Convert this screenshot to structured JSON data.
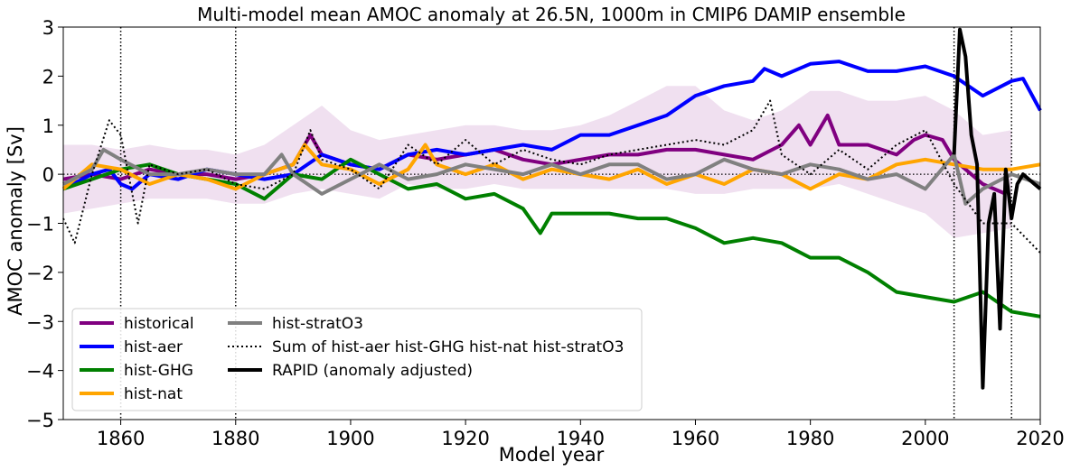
{
  "chart_data": {
    "type": "line",
    "title": "Multi-model mean AMOC anomaly at 26.5N, 1000m in CMIP6 DAMIP ensemble",
    "xlabel": "Model year",
    "ylabel": "AMOC anomaly [Sv]",
    "xlim": [
      1850,
      2020
    ],
    "ylim": [
      -5,
      3
    ],
    "xticks": [
      1860,
      1880,
      1900,
      1920,
      1940,
      1960,
      1980,
      2000,
      2020
    ],
    "yticks": [
      3,
      2,
      1,
      0,
      -1,
      -2,
      -3,
      -4,
      -5
    ],
    "ytick_labels": [
      "3",
      "2",
      "1",
      "0",
      "−1",
      "−2",
      "−3",
      "−4",
      "−5"
    ],
    "vertical_dotted_lines": [
      1860,
      1880,
      2005,
      2015
    ],
    "zero_line": true,
    "grid": false,
    "legend_position": "lower-left",
    "series": [
      {
        "name": "historical",
        "color": "#800080",
        "style": "solid",
        "x": [
          1850,
          1855,
          1860,
          1865,
          1870,
          1875,
          1880,
          1885,
          1890,
          1893,
          1895,
          1900,
          1905,
          1910,
          1915,
          1920,
          1925,
          1930,
          1935,
          1940,
          1945,
          1950,
          1955,
          1960,
          1965,
          1970,
          1975,
          1978,
          1980,
          1983,
          1985,
          1990,
          1995,
          1998,
          2000,
          2003,
          2005,
          2010,
          2014
        ],
        "y": [
          -0.1,
          0.0,
          -0.1,
          0.1,
          0.0,
          0.0,
          -0.1,
          0.0,
          0.2,
          0.8,
          0.4,
          0.2,
          0.1,
          0.4,
          0.3,
          0.4,
          0.5,
          0.3,
          0.2,
          0.3,
          0.4,
          0.4,
          0.5,
          0.5,
          0.4,
          0.3,
          0.6,
          1.0,
          0.6,
          1.2,
          0.6,
          0.6,
          0.4,
          0.7,
          0.8,
          0.7,
          0.3,
          -0.2,
          -0.4
        ]
      },
      {
        "name": "hist-aer",
        "color": "#0000ff",
        "style": "solid",
        "x": [
          1850,
          1855,
          1858,
          1860,
          1862,
          1865,
          1870,
          1875,
          1880,
          1885,
          1890,
          1895,
          1900,
          1905,
          1910,
          1915,
          1920,
          1925,
          1930,
          1935,
          1940,
          1945,
          1950,
          1955,
          1960,
          1965,
          1970,
          1972,
          1975,
          1980,
          1985,
          1990,
          1995,
          2000,
          2005,
          2010,
          2015,
          2017,
          2020
        ],
        "y": [
          -0.3,
          0.0,
          0.1,
          -0.2,
          -0.3,
          0.0,
          -0.1,
          0.1,
          0.0,
          -0.1,
          0.0,
          0.4,
          0.2,
          0.1,
          0.4,
          0.5,
          0.4,
          0.5,
          0.6,
          0.5,
          0.8,
          0.8,
          1.0,
          1.2,
          1.6,
          1.8,
          1.9,
          2.15,
          2.0,
          2.25,
          2.3,
          2.1,
          2.1,
          2.2,
          2.0,
          1.6,
          1.9,
          1.95,
          1.3
        ]
      },
      {
        "name": "hist-GHG",
        "color": "#008000",
        "style": "solid",
        "x": [
          1850,
          1855,
          1860,
          1865,
          1870,
          1875,
          1880,
          1885,
          1890,
          1895,
          1900,
          1905,
          1910,
          1915,
          1920,
          1925,
          1930,
          1933,
          1935,
          1940,
          1945,
          1950,
          1955,
          1960,
          1965,
          1970,
          1975,
          1980,
          1985,
          1990,
          1995,
          2000,
          2005,
          2010,
          2015,
          2020
        ],
        "y": [
          -0.3,
          -0.1,
          0.1,
          0.2,
          0.0,
          -0.1,
          -0.2,
          -0.5,
          0.0,
          -0.1,
          0.3,
          0.0,
          -0.3,
          -0.2,
          -0.5,
          -0.4,
          -0.7,
          -1.2,
          -0.8,
          -0.8,
          -0.8,
          -0.9,
          -0.9,
          -1.1,
          -1.4,
          -1.3,
          -1.4,
          -1.7,
          -1.7,
          -2.0,
          -2.4,
          -2.5,
          -2.6,
          -2.4,
          -2.8,
          -2.9
        ]
      },
      {
        "name": "hist-nat",
        "color": "#ffa500",
        "style": "solid",
        "x": [
          1850,
          1855,
          1860,
          1865,
          1870,
          1875,
          1880,
          1885,
          1890,
          1892,
          1895,
          1900,
          1905,
          1910,
          1913,
          1915,
          1920,
          1925,
          1930,
          1935,
          1940,
          1945,
          1950,
          1955,
          1960,
          1965,
          1970,
          1975,
          1980,
          1985,
          1990,
          1995,
          2000,
          2005,
          2010,
          2015,
          2020
        ],
        "y": [
          -0.3,
          0.2,
          0.1,
          -0.2,
          0.0,
          -0.1,
          -0.3,
          0.0,
          0.2,
          0.6,
          0.2,
          0.1,
          -0.2,
          0.1,
          0.6,
          0.2,
          0.0,
          0.2,
          -0.1,
          0.1,
          0.0,
          -0.1,
          0.1,
          -0.2,
          0.0,
          -0.2,
          0.1,
          0.0,
          -0.3,
          0.0,
          -0.1,
          0.2,
          0.3,
          0.2,
          0.1,
          0.1,
          0.2
        ]
      },
      {
        "name": "hist-stratO3",
        "color": "#808080",
        "style": "solid",
        "x": [
          1850,
          1855,
          1857,
          1860,
          1865,
          1870,
          1875,
          1880,
          1885,
          1888,
          1890,
          1895,
          1900,
          1905,
          1910,
          1915,
          1920,
          1925,
          1930,
          1935,
          1940,
          1945,
          1950,
          1955,
          1960,
          1965,
          1970,
          1975,
          1980,
          1985,
          1990,
          1995,
          2000,
          2005,
          2007,
          2010,
          2015,
          2020
        ],
        "y": [
          -0.2,
          0.1,
          0.5,
          0.3,
          0.0,
          0.0,
          0.1,
          0.0,
          0.0,
          0.4,
          0.0,
          -0.4,
          -0.1,
          0.2,
          -0.1,
          0.0,
          0.2,
          0.1,
          0.0,
          0.2,
          0.0,
          0.2,
          0.2,
          -0.1,
          0.0,
          0.3,
          0.1,
          0.0,
          0.2,
          0.1,
          -0.1,
          0.0,
          -0.3,
          0.4,
          -0.6,
          -0.3,
          0.0,
          -0.2
        ]
      },
      {
        "name": "Sum of hist-aer hist-GHG hist-nat hist-stratO3",
        "color": "#000000",
        "style": "dotted",
        "x": [
          1850,
          1852,
          1855,
          1858,
          1860,
          1863,
          1865,
          1870,
          1875,
          1880,
          1885,
          1890,
          1893,
          1895,
          1900,
          1905,
          1910,
          1915,
          1920,
          1925,
          1930,
          1935,
          1940,
          1945,
          1950,
          1955,
          1960,
          1965,
          1970,
          1973,
          1975,
          1980,
          1985,
          1990,
          1995,
          2000,
          2005,
          2010,
          2015,
          2020
        ],
        "y": [
          -0.9,
          -1.4,
          0.0,
          1.1,
          0.8,
          -1.0,
          0.2,
          0.0,
          0.1,
          -0.2,
          -0.3,
          0.0,
          0.9,
          0.3,
          0.1,
          -0.3,
          0.6,
          0.2,
          0.7,
          0.2,
          0.5,
          0.3,
          0.2,
          0.4,
          0.5,
          0.6,
          0.7,
          0.6,
          0.9,
          1.5,
          0.4,
          0.0,
          0.5,
          0.1,
          0.6,
          0.9,
          -0.2,
          -1.0,
          -1.0,
          -1.6
        ]
      },
      {
        "name": "RAPID (anomaly adjusted)",
        "color": "#000000",
        "style": "solid",
        "x": [
          2005,
          2006,
          2007,
          2008,
          2009,
          2010,
          2011,
          2012,
          2013,
          2014,
          2015,
          2016,
          2017,
          2018,
          2019,
          2020
        ],
        "y": [
          0.4,
          2.95,
          2.4,
          0.8,
          0.2,
          -4.35,
          -1.0,
          -0.4,
          -3.15,
          0.1,
          -0.9,
          -0.2,
          0.0,
          -0.1,
          -0.2,
          -0.3
        ]
      }
    ],
    "ensemble_spread": {
      "series": "historical",
      "color": "#800080",
      "opacity": 0.12,
      "x": [
        1850,
        1855,
        1860,
        1865,
        1870,
        1875,
        1880,
        1885,
        1890,
        1895,
        1900,
        1905,
        1910,
        1915,
        1920,
        1925,
        1930,
        1935,
        1940,
        1945,
        1950,
        1955,
        1960,
        1965,
        1970,
        1975,
        1980,
        1985,
        1990,
        1995,
        2000,
        2005,
        2010,
        2015
      ],
      "upper": [
        0.6,
        0.6,
        0.5,
        0.6,
        0.5,
        0.5,
        0.4,
        0.6,
        1.0,
        1.4,
        0.9,
        0.7,
        0.8,
        0.9,
        1.0,
        1.0,
        0.9,
        0.9,
        1.0,
        1.2,
        1.5,
        1.8,
        1.8,
        1.3,
        1.1,
        1.3,
        1.7,
        1.7,
        1.5,
        1.5,
        1.6,
        1.3,
        0.8,
        0.9
      ],
      "lower": [
        -0.8,
        -0.7,
        -0.6,
        -0.5,
        -0.5,
        -0.5,
        -0.6,
        -0.6,
        -0.4,
        -0.3,
        -0.4,
        -0.5,
        -0.2,
        -0.3,
        -0.3,
        -0.2,
        -0.3,
        -0.3,
        -0.3,
        -0.3,
        -0.3,
        -0.3,
        -0.4,
        -0.4,
        -0.3,
        -0.3,
        -0.3,
        -0.2,
        -0.4,
        -0.6,
        -0.8,
        -1.3,
        -1.2,
        -1.1
      ]
    }
  }
}
